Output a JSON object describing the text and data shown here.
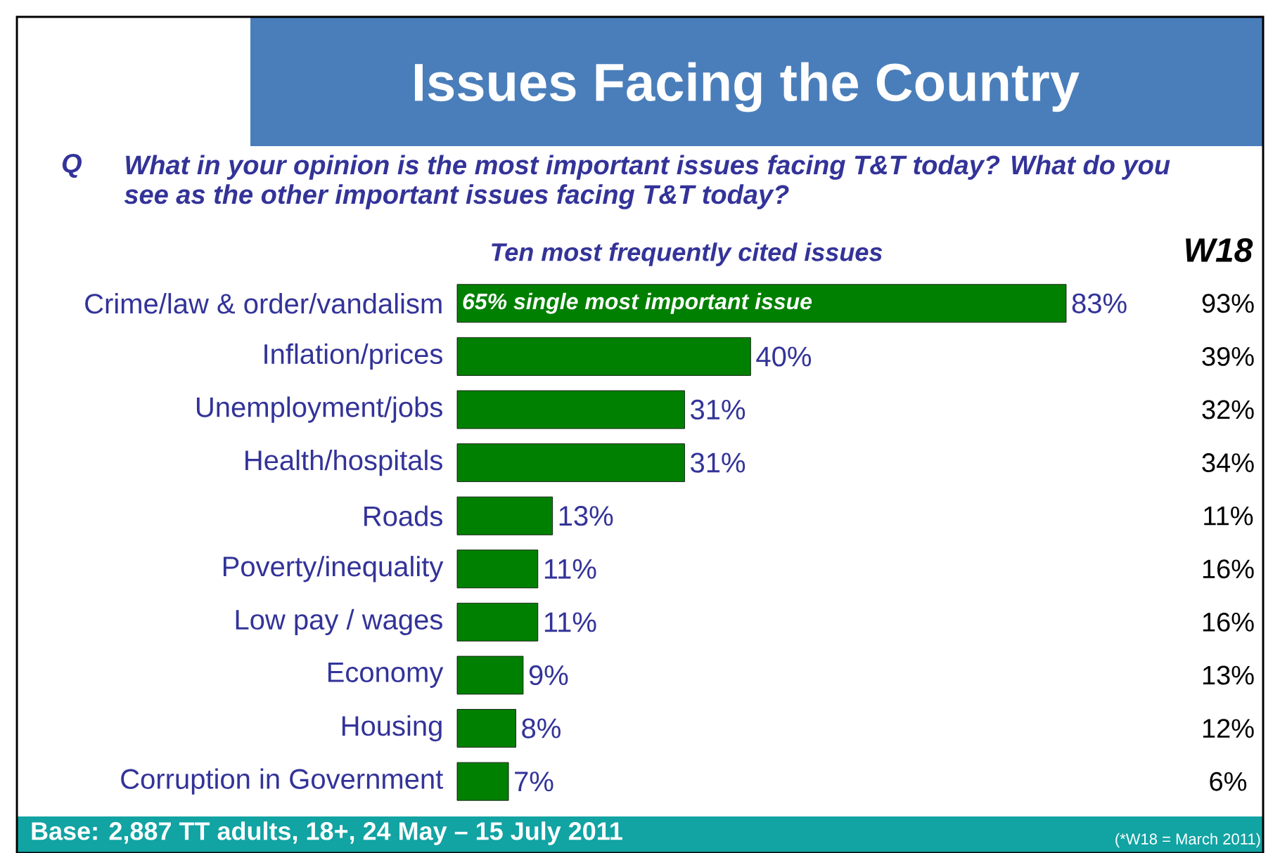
{
  "chart_data": {
    "type": "bar",
    "orientation": "horizontal",
    "title": "Issues Facing the Country",
    "subtitle": "What in your opinion is the most important issues facing T&T today? What do you see as the other important issues facing T&T today?",
    "categories": [
      "Crime/law & order/vandalism",
      "Inflation/prices",
      "Unemployment/jobs",
      "Health/hospitals",
      "Roads",
      "Poverty/inequality",
      "Low pay / wages",
      "Economy",
      "Housing",
      "Corruption in Government"
    ],
    "values": [
      83,
      40,
      31,
      31,
      13,
      11,
      11,
      9,
      8,
      7
    ],
    "value_labels": [
      "83%",
      "40%",
      "31%",
      "31%",
      "13%",
      "11%",
      "11%",
      "9%",
      "8%",
      "7%"
    ],
    "color": "#008000",
    "annotations": [
      "Q",
      "Ten most frequently cited issues",
      "65% single most important issue",
      "W18",
      "93%",
      "39%",
      "32%",
      "34%",
      "11%",
      "16%",
      "16%",
      "13%",
      "12%",
      "6%",
      "Base: 2,887 TT adults, 18+, 24 May – 15 July 2011",
      "(*W18 = March 2011)"
    ]
  }
}
